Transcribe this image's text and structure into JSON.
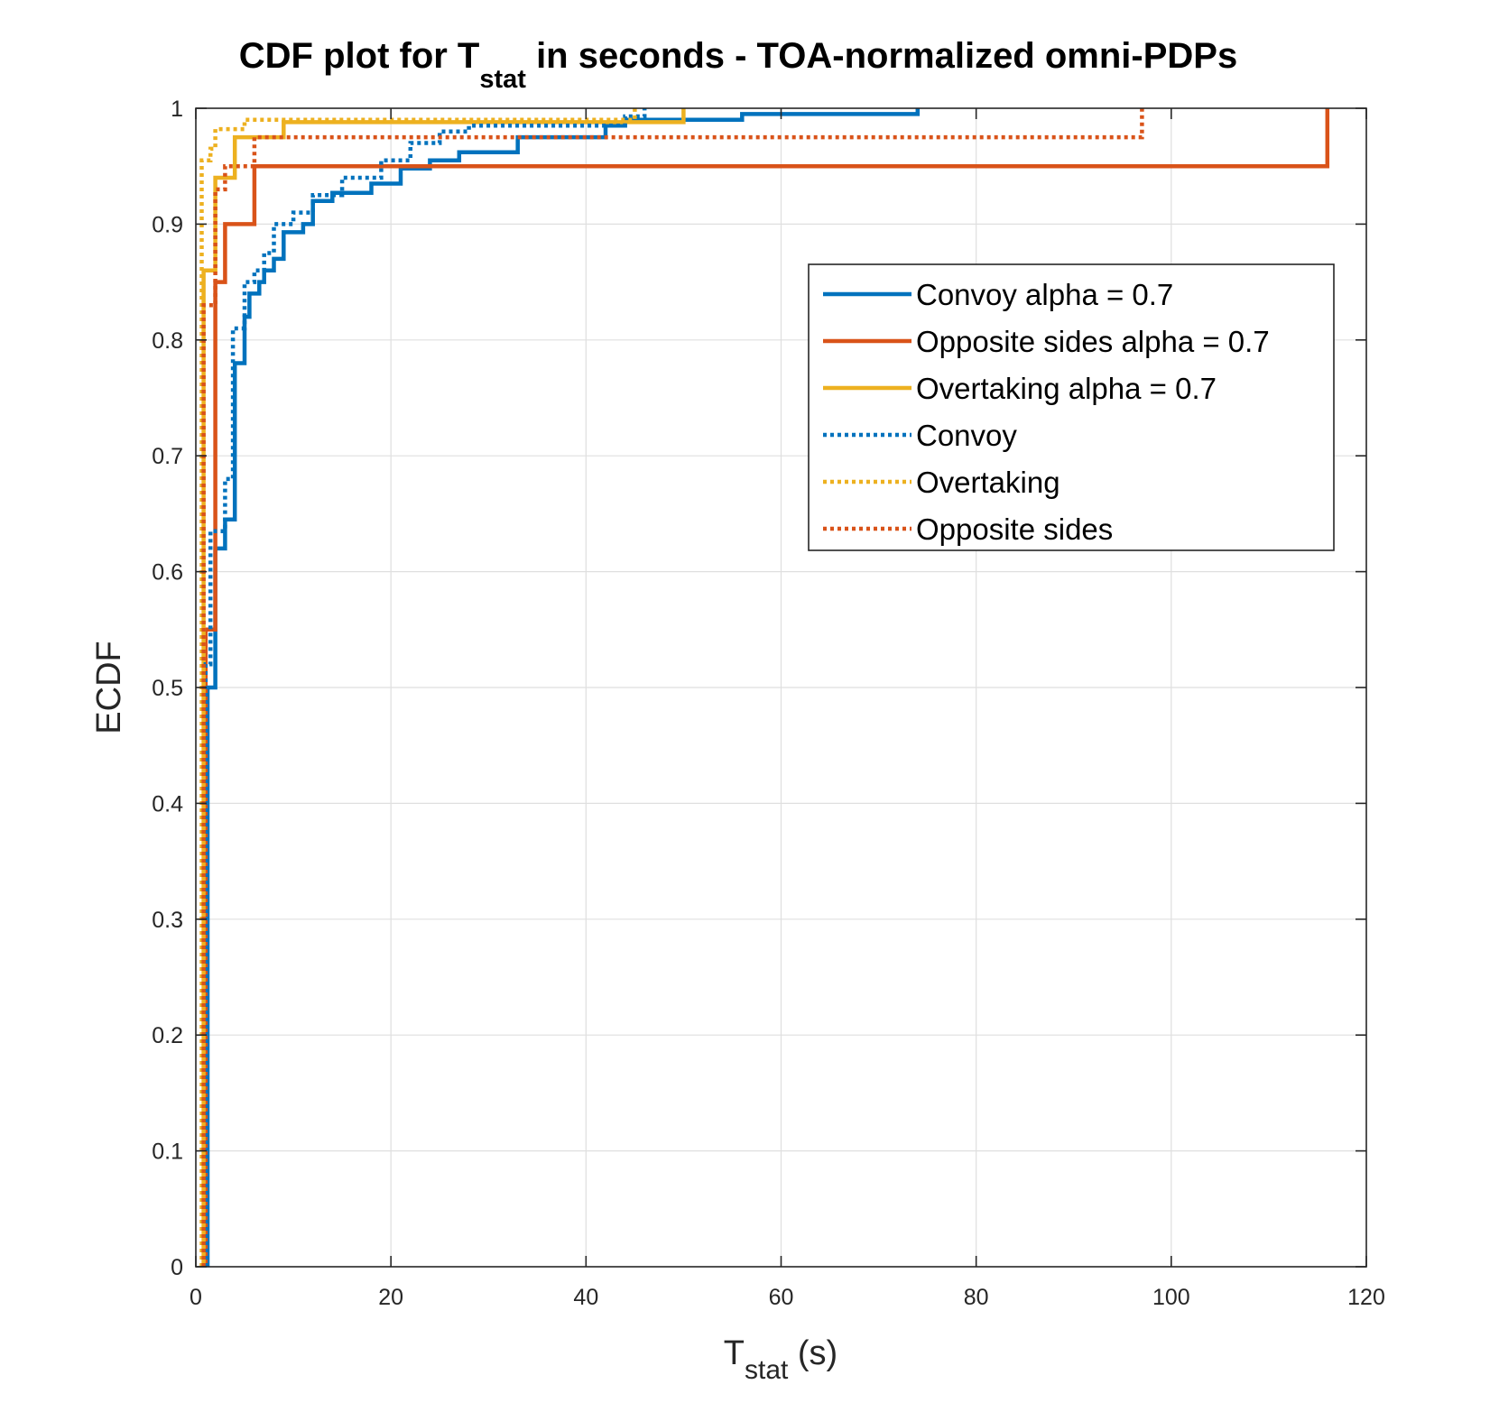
{
  "chart_data": {
    "type": "line",
    "title": {
      "prefix": "CDF plot for T",
      "subscript": "stat",
      "suffix": " in seconds - TOA-normalized omni-PDPs"
    },
    "xlabel": {
      "main": "T",
      "subscript": "stat",
      "unit": " (s)"
    },
    "ylabel": "ECDF",
    "xlim": [
      0,
      120
    ],
    "ylim": [
      0,
      1
    ],
    "xticks": [
      0,
      20,
      40,
      60,
      80,
      100,
      120
    ],
    "xtick_labels": [
      "0",
      "20",
      "40",
      "60",
      "80",
      "100",
      "120"
    ],
    "yticks": [
      0,
      0.1,
      0.2,
      0.3,
      0.4,
      0.5,
      0.6,
      0.7,
      0.8,
      0.9,
      1
    ],
    "ytick_labels": [
      "0",
      "0.1",
      "0.2",
      "0.3",
      "0.4",
      "0.5",
      "0.6",
      "0.7",
      "0.8",
      "0.9",
      "1"
    ],
    "grid": true,
    "legend_position": "upper-right",
    "series": [
      {
        "name": "Convoy alpha = 0.7",
        "color": "#0072BD",
        "style": "solid",
        "points": [
          [
            1.2,
            0
          ],
          [
            1.2,
            0.5
          ],
          [
            2,
            0.5
          ],
          [
            2,
            0.62
          ],
          [
            3,
            0.62
          ],
          [
            3,
            0.645
          ],
          [
            4,
            0.645
          ],
          [
            4,
            0.78
          ],
          [
            5,
            0.78
          ],
          [
            5,
            0.82
          ],
          [
            5.5,
            0.82
          ],
          [
            5.5,
            0.84
          ],
          [
            6.5,
            0.84
          ],
          [
            6.5,
            0.85
          ],
          [
            7,
            0.85
          ],
          [
            7,
            0.86
          ],
          [
            8,
            0.86
          ],
          [
            8,
            0.87
          ],
          [
            9,
            0.87
          ],
          [
            9,
            0.893
          ],
          [
            11,
            0.893
          ],
          [
            11,
            0.9
          ],
          [
            12,
            0.9
          ],
          [
            12,
            0.92
          ],
          [
            14,
            0.92
          ],
          [
            14,
            0.927
          ],
          [
            18,
            0.927
          ],
          [
            18,
            0.935
          ],
          [
            21,
            0.935
          ],
          [
            21,
            0.948
          ],
          [
            24,
            0.948
          ],
          [
            24,
            0.955
          ],
          [
            27,
            0.955
          ],
          [
            27,
            0.962
          ],
          [
            33,
            0.962
          ],
          [
            33,
            0.975
          ],
          [
            42,
            0.975
          ],
          [
            42,
            0.985
          ],
          [
            44,
            0.985
          ],
          [
            44,
            0.99
          ],
          [
            56,
            0.99
          ],
          [
            56,
            0.995
          ],
          [
            74,
            0.995
          ],
          [
            74,
            1
          ]
        ]
      },
      {
        "name": "Opposite sides alpha = 0.7",
        "color": "#D95319",
        "style": "solid",
        "points": [
          [
            1,
            0
          ],
          [
            1,
            0.55
          ],
          [
            2,
            0.55
          ],
          [
            2,
            0.85
          ],
          [
            3,
            0.85
          ],
          [
            3,
            0.9
          ],
          [
            6,
            0.9
          ],
          [
            6,
            0.95
          ],
          [
            116,
            0.95
          ],
          [
            116,
            1
          ]
        ]
      },
      {
        "name": "Overtaking alpha = 0.7",
        "color": "#EDB120",
        "style": "solid",
        "points": [
          [
            0.8,
            0
          ],
          [
            0.8,
            0.86
          ],
          [
            2,
            0.86
          ],
          [
            2,
            0.94
          ],
          [
            4,
            0.94
          ],
          [
            4,
            0.975
          ],
          [
            9,
            0.975
          ],
          [
            9,
            0.988
          ],
          [
            50,
            0.988
          ],
          [
            50,
            1
          ]
        ]
      },
      {
        "name": "Convoy",
        "color": "#0072BD",
        "style": "dotted",
        "points": [
          [
            1,
            0
          ],
          [
            1,
            0.52
          ],
          [
            1.5,
            0.52
          ],
          [
            1.5,
            0.635
          ],
          [
            3,
            0.635
          ],
          [
            3,
            0.68
          ],
          [
            3.8,
            0.68
          ],
          [
            3.8,
            0.81
          ],
          [
            5,
            0.81
          ],
          [
            5,
            0.85
          ],
          [
            6,
            0.85
          ],
          [
            6,
            0.86
          ],
          [
            7,
            0.86
          ],
          [
            7,
            0.875
          ],
          [
            8,
            0.875
          ],
          [
            8,
            0.9
          ],
          [
            10,
            0.9
          ],
          [
            10,
            0.91
          ],
          [
            12,
            0.91
          ],
          [
            12,
            0.925
          ],
          [
            15,
            0.925
          ],
          [
            15,
            0.94
          ],
          [
            19,
            0.94
          ],
          [
            19,
            0.955
          ],
          [
            22,
            0.955
          ],
          [
            22,
            0.97
          ],
          [
            25,
            0.97
          ],
          [
            25,
            0.98
          ],
          [
            28,
            0.98
          ],
          [
            28,
            0.985
          ],
          [
            44,
            0.985
          ],
          [
            44,
            0.993
          ],
          [
            46,
            0.993
          ],
          [
            46,
            1
          ]
        ]
      },
      {
        "name": "Overtaking",
        "color": "#EDB120",
        "style": "dotted",
        "points": [
          [
            0.6,
            0
          ],
          [
            0.6,
            0.955
          ],
          [
            1.5,
            0.955
          ],
          [
            1.5,
            0.965
          ],
          [
            2,
            0.965
          ],
          [
            2,
            0.982
          ],
          [
            5,
            0.982
          ],
          [
            5,
            0.99
          ],
          [
            45,
            0.99
          ],
          [
            45,
            1
          ]
        ]
      },
      {
        "name": "Opposite sides",
        "color": "#D95319",
        "style": "dotted",
        "points": [
          [
            0.8,
            0
          ],
          [
            0.8,
            0.83
          ],
          [
            2,
            0.83
          ],
          [
            2,
            0.93
          ],
          [
            3,
            0.93
          ],
          [
            3,
            0.95
          ],
          [
            6,
            0.95
          ],
          [
            6,
            0.975
          ],
          [
            97,
            0.975
          ],
          [
            97,
            1
          ]
        ]
      }
    ]
  }
}
